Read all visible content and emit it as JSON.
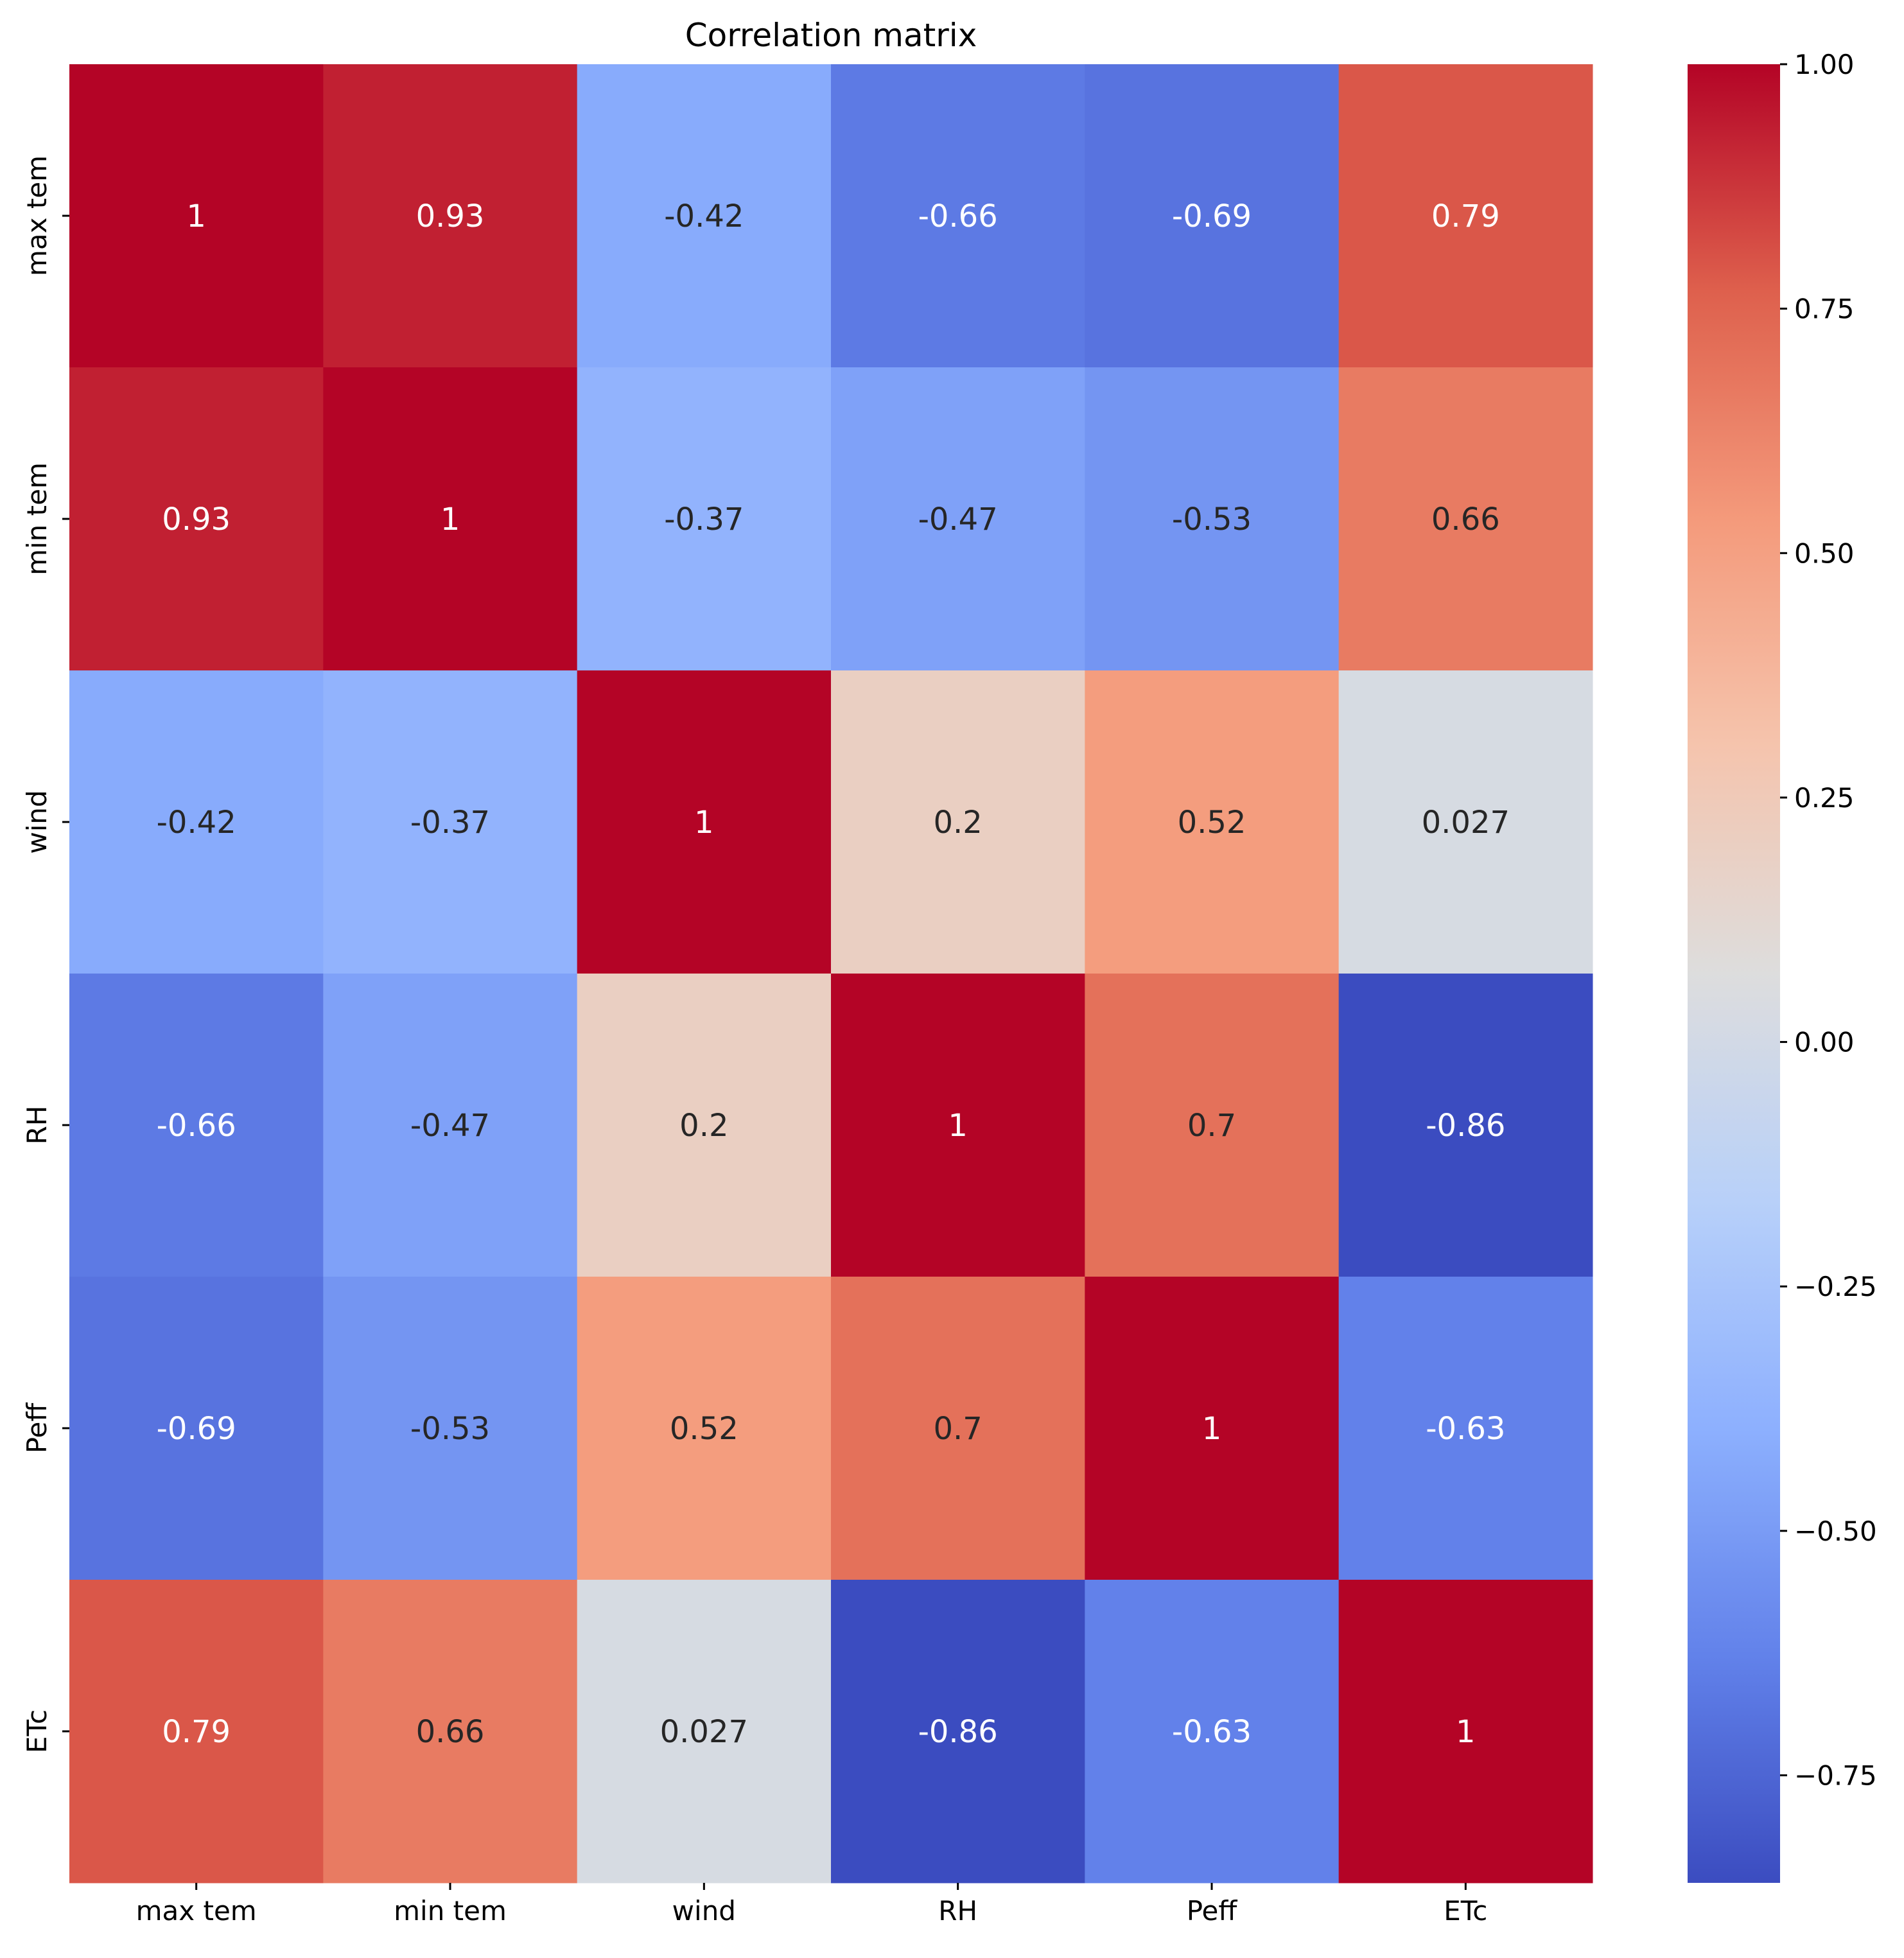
{
  "chart_data": {
    "type": "heatmap",
    "title": "Correlation matrix",
    "xlabel": "",
    "ylabel": "",
    "labels": [
      "max tem",
      "min tem",
      "wind",
      "RH",
      "Peff",
      "ETc"
    ],
    "matrix": [
      [
        1,
        0.93,
        -0.42,
        -0.66,
        -0.69,
        0.79
      ],
      [
        0.93,
        1,
        -0.37,
        -0.47,
        -0.53,
        0.66
      ],
      [
        -0.42,
        -0.37,
        1,
        0.2,
        0.52,
        0.027
      ],
      [
        -0.66,
        -0.47,
        0.2,
        1,
        0.7,
        -0.86
      ],
      [
        -0.69,
        -0.53,
        0.52,
        0.7,
        1,
        -0.63
      ],
      [
        0.79,
        0.66,
        0.027,
        -0.86,
        -0.63,
        1
      ]
    ],
    "annotations": [
      [
        "1",
        "0.93",
        "-0.42",
        "-0.66",
        "-0.69",
        "0.79"
      ],
      [
        "0.93",
        "1",
        "-0.37",
        "-0.47",
        "-0.53",
        "0.66"
      ],
      [
        "-0.42",
        "-0.37",
        "1",
        "0.2",
        "0.52",
        "0.027"
      ],
      [
        "-0.66",
        "-0.47",
        "0.2",
        "1",
        "0.7",
        "-0.86"
      ],
      [
        "-0.69",
        "-0.53",
        "0.52",
        "0.7",
        "1",
        "-0.63"
      ],
      [
        "0.79",
        "0.66",
        "0.027",
        "-0.86",
        "-0.63",
        "1"
      ]
    ],
    "colormap": "coolwarm",
    "colorbar": {
      "range": [
        -0.86,
        1.0
      ],
      "ticks": [
        1.0,
        0.75,
        0.5,
        0.25,
        0.0,
        -0.25,
        -0.5,
        -0.75
      ],
      "tick_labels": [
        "1.00",
        "0.75",
        "0.50",
        "0.25",
        "0.00",
        "−0.25",
        "−0.50",
        "−0.75"
      ]
    },
    "legend": "right"
  }
}
